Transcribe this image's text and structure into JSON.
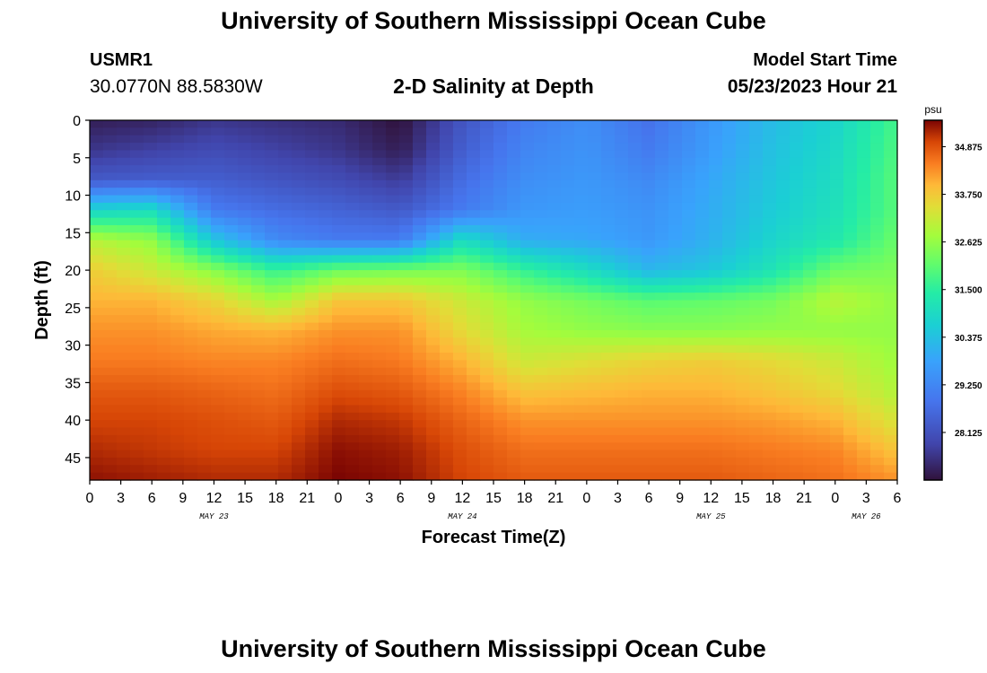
{
  "header": {
    "title": "University of Southern Mississippi Ocean Cube",
    "station_id": "USMR1",
    "location": "30.0770N  88.5830W",
    "subtitle": "2-D Salinity at Depth",
    "model_start_label": "Model Start Time",
    "model_start_value": "05/23/2023 Hour 21"
  },
  "footer": {
    "title": "University of Southern Mississippi Ocean Cube"
  },
  "chart_data": {
    "type": "heatmap",
    "ylabel": "Depth (ft)",
    "xlabel": "Forecast Time(Z)",
    "y_ticks": [
      0,
      5,
      10,
      15,
      20,
      25,
      30,
      35,
      40,
      45
    ],
    "ylim": [
      0,
      48
    ],
    "x_hours": [
      0,
      3,
      6,
      9,
      12,
      15,
      18,
      21,
      24,
      27,
      30,
      33,
      36,
      39,
      42,
      45,
      48,
      51,
      54,
      57,
      60,
      63,
      66,
      69,
      72,
      75,
      78
    ],
    "x_tick_labels": [
      "0",
      "3",
      "6",
      "9",
      "12",
      "15",
      "18",
      "21",
      "0",
      "3",
      "6",
      "9",
      "12",
      "15",
      "18",
      "21",
      "0",
      "3",
      "6",
      "9",
      "12",
      "15",
      "18",
      "21",
      "0",
      "3",
      "6"
    ],
    "date_labels": [
      {
        "label": "MAY 23",
        "hour": 12
      },
      {
        "label": "MAY 24",
        "hour": 36
      },
      {
        "label": "MAY 25",
        "hour": 60
      },
      {
        "label": "MAY 26",
        "hour": 75
      }
    ],
    "colorbar": {
      "unit": "psu",
      "range": [
        27.0,
        35.5
      ],
      "ticks": [
        "34.875",
        "33.750",
        "32.625",
        "31.500",
        "30.375",
        "29.250",
        "28.125"
      ],
      "tick_values": [
        34.875,
        33.75,
        32.625,
        31.5,
        30.375,
        29.25,
        28.125
      ]
    },
    "grid": false,
    "grid_depths": [
      0,
      4,
      8,
      12,
      16,
      20,
      24,
      28,
      32,
      36,
      40,
      44,
      48
    ],
    "grid_hours": [
      0,
      6,
      12,
      18,
      24,
      30,
      36,
      42,
      48,
      54,
      60,
      66,
      72,
      78
    ],
    "salinity_grid": [
      [
        27.2,
        27.3,
        27.6,
        27.5,
        27.4,
        27.0,
        28.2,
        29.0,
        29.4,
        28.8,
        29.6,
        30.3,
        30.8,
        31.8
      ],
      [
        27.6,
        27.8,
        28.0,
        27.8,
        27.6,
        27.2,
        28.4,
        29.2,
        29.5,
        29.0,
        29.7,
        30.4,
        30.9,
        31.9
      ],
      [
        28.3,
        28.4,
        28.4,
        28.2,
        28.0,
        27.7,
        28.7,
        29.4,
        29.6,
        29.3,
        29.9,
        30.5,
        31.0,
        32.0
      ],
      [
        30.8,
        31.0,
        29.0,
        28.7,
        28.5,
        28.3,
        29.0,
        29.6,
        29.7,
        29.5,
        30.0,
        30.6,
        31.1,
        32.0
      ],
      [
        33.0,
        32.6,
        30.5,
        29.3,
        29.0,
        29.0,
        31.0,
        30.0,
        29.9,
        29.6,
        30.1,
        30.8,
        31.3,
        32.2
      ],
      [
        33.7,
        33.2,
        32.5,
        31.6,
        32.2,
        32.3,
        32.4,
        31.6,
        31.0,
        30.2,
        30.5,
        31.2,
        32.2,
        32.4
      ],
      [
        34.0,
        34.0,
        33.6,
        32.8,
        33.8,
        33.8,
        33.2,
        32.6,
        32.3,
        32.0,
        32.1,
        32.3,
        33.0,
        32.6
      ],
      [
        34.3,
        34.3,
        34.1,
        34.0,
        34.3,
        34.3,
        33.5,
        32.8,
        32.6,
        32.5,
        32.5,
        32.6,
        32.6,
        32.6
      ],
      [
        34.5,
        34.5,
        34.4,
        34.4,
        34.6,
        34.5,
        34.0,
        33.2,
        33.4,
        33.6,
        33.7,
        33.5,
        33.2,
        32.7
      ],
      [
        34.8,
        34.8,
        34.7,
        34.6,
        34.9,
        34.8,
        34.4,
        33.8,
        33.9,
        34.0,
        34.0,
        33.8,
        33.5,
        32.9
      ],
      [
        35.0,
        35.0,
        34.9,
        34.8,
        35.2,
        35.1,
        34.7,
        34.3,
        34.3,
        34.3,
        34.3,
        34.2,
        34.0,
        33.3
      ],
      [
        35.2,
        35.1,
        35.0,
        35.0,
        35.4,
        35.3,
        34.9,
        34.6,
        34.6,
        34.6,
        34.6,
        34.5,
        34.4,
        33.8
      ],
      [
        35.4,
        35.3,
        35.2,
        35.2,
        35.5,
        35.4,
        35.0,
        34.8,
        34.8,
        34.8,
        34.8,
        34.7,
        34.6,
        34.3
      ]
    ]
  }
}
